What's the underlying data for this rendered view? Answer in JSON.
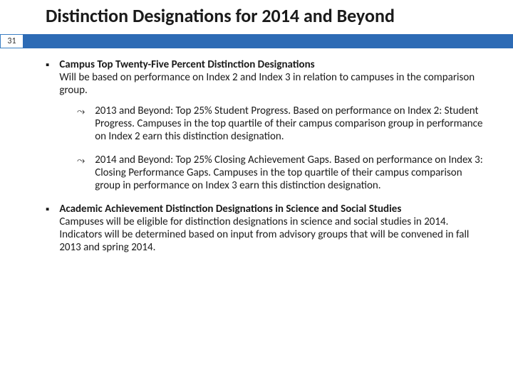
{
  "title": "Distinction Designations for 2014 and Beyond",
  "page_number": "31",
  "accent_color": "#2d6bb5",
  "text_color": "#1a1a1a",
  "background_color": "#ffffff",
  "title_fontsize": 26,
  "body_fontsize": 15,
  "bullets": {
    "b1_heading": "Campus Top Twenty-Five Percent Distinction Designations",
    "b1_body": "Will be based on performance on Index 2 and Index 3 in relation to campuses in the comparison group.",
    "b1_sub1": "2013 and Beyond: Top 25% Student Progress.  Based on performance on Index 2: Student Progress.  Campuses in the top quartile of their campus comparison group in performance on Index 2 earn this distinction designation.",
    "b1_sub2": "2014 and Beyond: Top 25% Closing Achievement Gaps.  Based on performance on Index 3: Closing Performance Gaps.  Campuses in the top quartile of their campus comparison group in performance on Index 3 earn this distinction designation.",
    "b2_heading": "Academic Achievement Distinction Designations  in Science and Social Studies",
    "b2_body": "Campuses will be eligible for distinction designations in science and social studies in 2014.  Indicators will be determined based on input from advisory groups that will be convened in fall 2013 and spring 2014."
  }
}
